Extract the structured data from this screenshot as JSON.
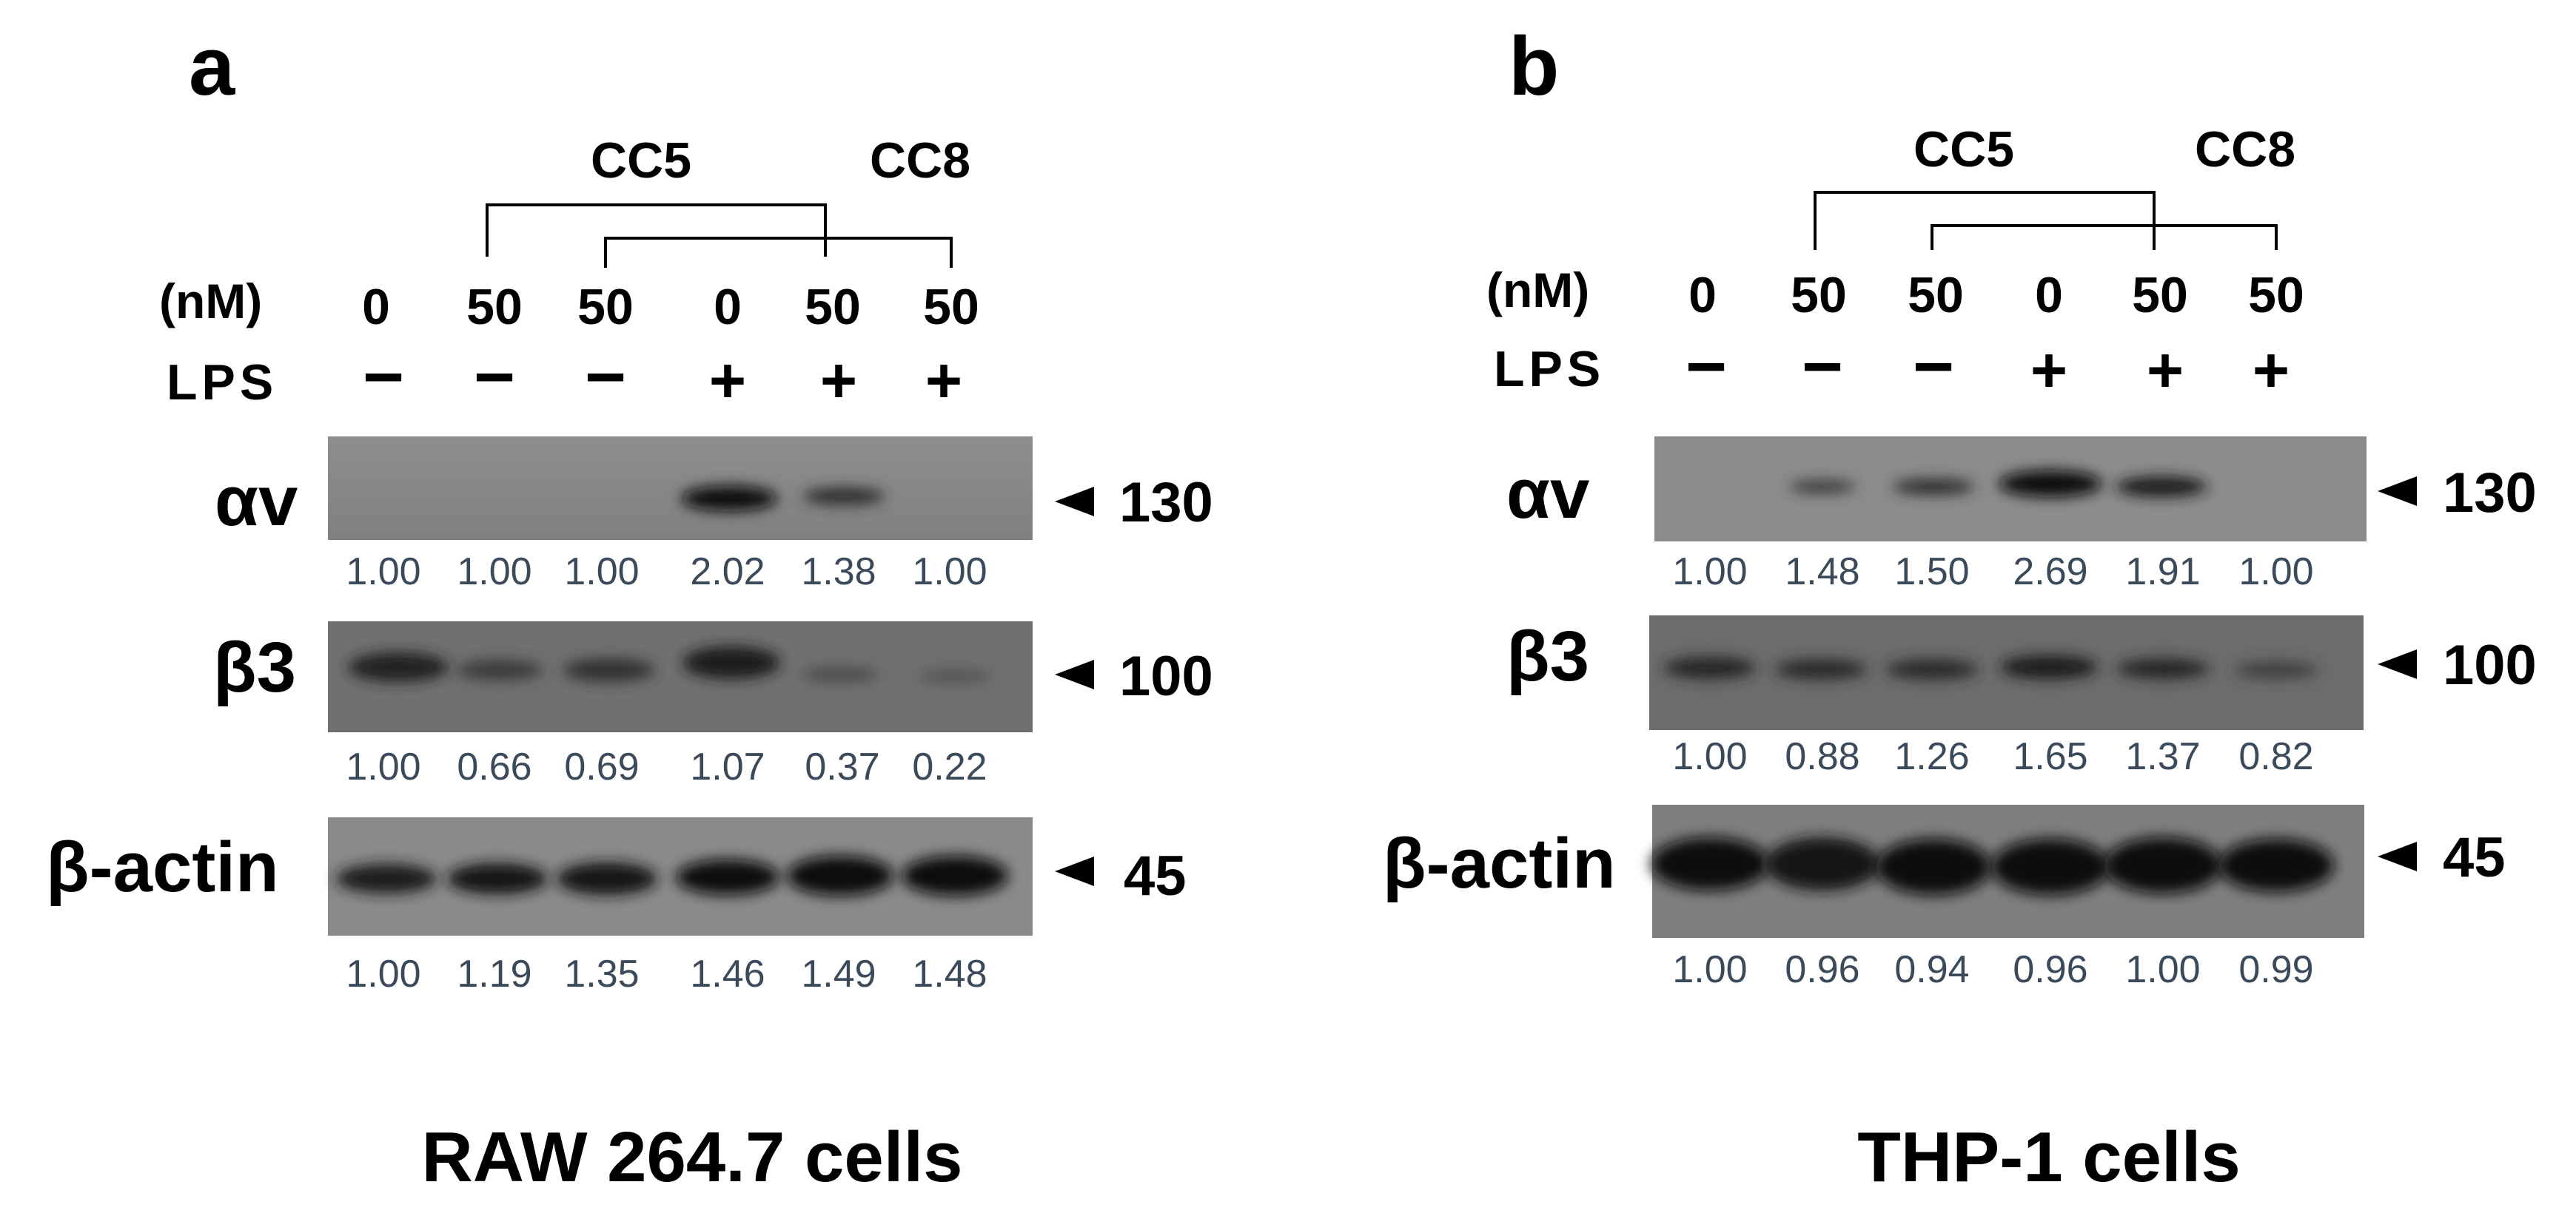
{
  "colors": {
    "text": "#000000",
    "values": "#3a4a5a",
    "blot_bg": "#878787"
  },
  "panels": [
    {
      "letter": "a",
      "bracket_labels": {
        "cc5": "CC5",
        "cc8": "CC8"
      },
      "nm_label": "(nM)",
      "lps_label": "LPS",
      "conc": [
        "0",
        "50",
        "50",
        "0",
        "50",
        "50"
      ],
      "lps": [
        "−",
        "−",
        "−",
        "+",
        "+",
        "+"
      ],
      "blots": [
        {
          "name": "αv",
          "mw": "130",
          "values": [
            "1.00",
            "1.00",
            "1.00",
            "2.02",
            "1.38",
            "1.00"
          ]
        },
        {
          "name": "β3",
          "mw": "100",
          "values": [
            "1.00",
            "0.66",
            "0.69",
            "1.07",
            "0.37",
            "0.22"
          ]
        },
        {
          "name": "β-actin",
          "mw": "45",
          "values": [
            "1.00",
            "1.19",
            "1.35",
            "1.46",
            "1.49",
            "1.48"
          ]
        }
      ],
      "cells": "RAW 264.7 cells"
    },
    {
      "letter": "b",
      "bracket_labels": {
        "cc5": "CC5",
        "cc8": "CC8"
      },
      "nm_label": "(nM)",
      "lps_label": "LPS",
      "conc": [
        "0",
        "50",
        "50",
        "0",
        "50",
        "50"
      ],
      "lps": [
        "−",
        "−",
        "−",
        "+",
        "+",
        "+"
      ],
      "blots": [
        {
          "name": "αv",
          "mw": "130",
          "values": [
            "1.00",
            "1.48",
            "1.50",
            "2.69",
            "1.91",
            "1.00"
          ]
        },
        {
          "name": "β3",
          "mw": "100",
          "values": [
            "1.00",
            "0.88",
            "1.26",
            "1.65",
            "1.37",
            "0.82"
          ]
        },
        {
          "name": "β-actin",
          "mw": "45",
          "values": [
            "1.00",
            "0.96",
            "0.94",
            "0.96",
            "1.00",
            "0.99"
          ]
        }
      ],
      "cells": "THP-1 cells"
    }
  ]
}
